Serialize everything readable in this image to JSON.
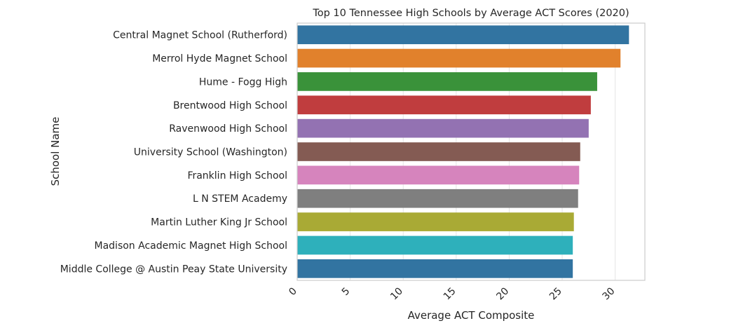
{
  "chart_data": {
    "type": "bar",
    "orientation": "horizontal",
    "title": "Top 10 Tennessee High Schools by Average ACT Scores (2020)",
    "xlabel": "Average ACT Composite",
    "ylabel": "School Name",
    "xlim": [
      0,
      32.8
    ],
    "xticks": [
      "0",
      "5",
      "10",
      "15",
      "20",
      "25",
      "30"
    ],
    "grid": true,
    "categories": [
      "Central Magnet School (Rutherford)",
      "Merrol Hyde Magnet School",
      "Hume - Fogg High",
      "Brentwood High School",
      "Ravenwood High School",
      "University School (Washington)",
      "Franklin High School",
      "L N STEM Academy",
      "Martin Luther King Jr School",
      "Madison Academic Magnet High School",
      "Middle College @ Austin Peay State University"
    ],
    "values": [
      31.3,
      30.5,
      28.3,
      27.7,
      27.5,
      26.7,
      26.6,
      26.5,
      26.1,
      26.0,
      26.0
    ],
    "colors": [
      "#3274a1",
      "#e1812c",
      "#3a923a",
      "#c03d3e",
      "#9372b2",
      "#845b53",
      "#d684bd",
      "#7f7f7f",
      "#a9aa35",
      "#2eb0bb",
      "#3274a1"
    ]
  }
}
